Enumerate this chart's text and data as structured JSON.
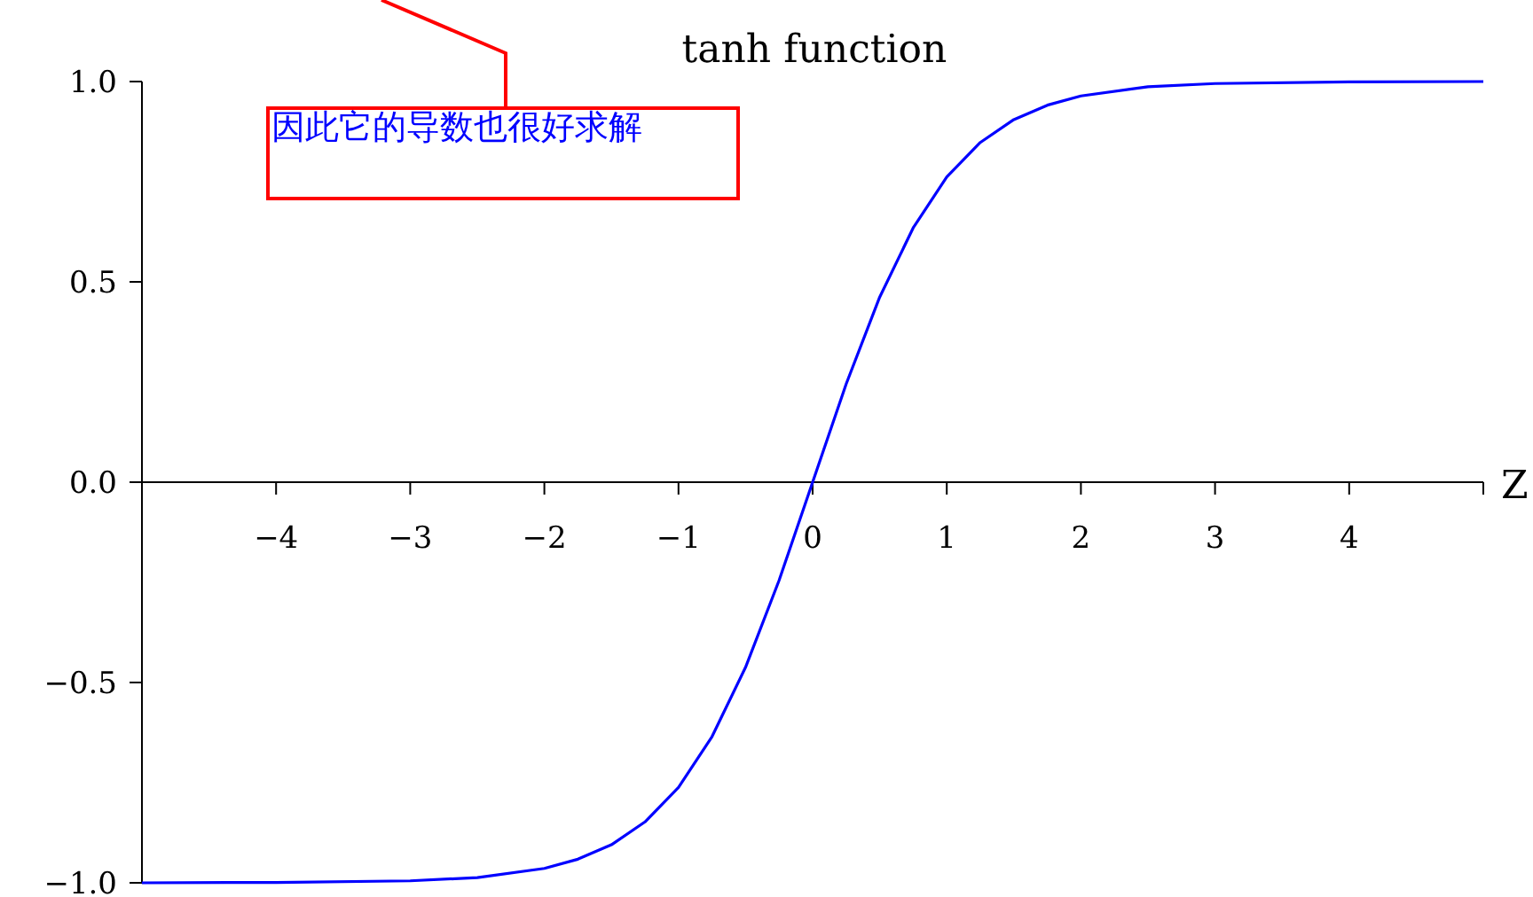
{
  "chart_data": {
    "type": "line",
    "title": "tanh function",
    "xlabel": "Z",
    "color": "#0000ff",
    "x": [
      -5,
      -4,
      -3,
      -2.5,
      -2,
      -1.75,
      -1.5,
      -1.25,
      -1,
      -0.75,
      -0.5,
      -0.25,
      0,
      0.25,
      0.5,
      0.75,
      1,
      1.25,
      1.5,
      1.75,
      2,
      2.5,
      3,
      4,
      5
    ],
    "values": [
      -1.0,
      -0.999,
      -0.995,
      -0.987,
      -0.964,
      -0.941,
      -0.905,
      -0.848,
      -0.762,
      -0.635,
      -0.462,
      -0.245,
      0,
      0.245,
      0.462,
      0.635,
      0.762,
      0.848,
      0.905,
      0.941,
      0.964,
      0.987,
      0.995,
      0.999,
      1.0
    ],
    "xlim": [
      -5,
      5
    ],
    "ylim": [
      -1,
      1
    ],
    "xticks": [
      -4,
      -3,
      -2,
      -1,
      0,
      1,
      2,
      3,
      4,
      {
        "value": 5,
        "label": null
      }
    ],
    "yticks": [
      {
        "value": -1,
        "label": "−1.0"
      },
      {
        "value": -0.5,
        "label": "−0.5"
      },
      {
        "value": 0,
        "label": "0.0"
      },
      {
        "value": 0.5,
        "label": "0.5"
      },
      {
        "value": 1,
        "label": "1.0"
      }
    ],
    "annotations": [
      "因此它的导数也很好求解"
    ]
  }
}
